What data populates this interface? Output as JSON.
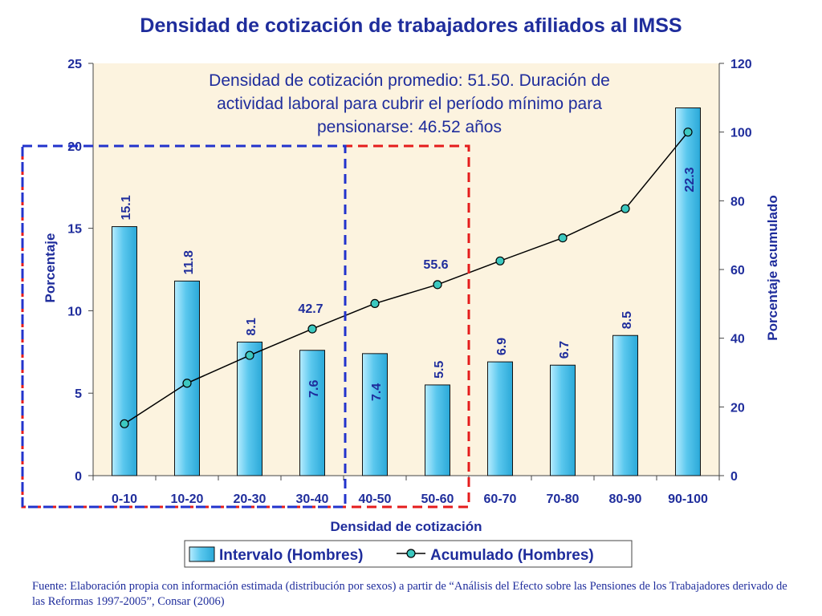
{
  "title": "Densidad de cotización de trabajadores afiliados al IMSS",
  "source": "Fuente: Elaboración propia con información estimada (distribución por sexos) a partir de “Análisis del Efecto sobre las Pensiones de los Trabajadores derivado de las Reformas 1997-2005”, Consar (2006)",
  "chart_data": {
    "type": "bar",
    "xlabel": "Densidad de cotización",
    "ylabel": "Porcentaje",
    "y2label": "Porcentaje acumulado",
    "ylim": [
      0,
      25
    ],
    "y2lim": [
      0,
      120
    ],
    "yticks": [
      0,
      5,
      10,
      15,
      20,
      25
    ],
    "y2ticks": [
      0,
      20,
      40,
      60,
      80,
      100,
      120
    ],
    "categories": [
      "0-10",
      "10-20",
      "20-30",
      "30-40",
      "40-50",
      "50-60",
      "60-70",
      "70-80",
      "80-90",
      "90-100"
    ],
    "series": [
      {
        "name": "Intervalo (Hombres)",
        "type": "bar",
        "axis": "left",
        "values": [
          15.1,
          11.8,
          8.1,
          7.6,
          7.4,
          5.5,
          6.9,
          6.7,
          8.5,
          22.3
        ],
        "labels": [
          "15.1",
          "11.8",
          "8.1",
          "7.6",
          "7.4",
          "5.5",
          "6.9",
          "6.7",
          "8.5",
          "22.3"
        ],
        "color": "#5bc8ee"
      },
      {
        "name": "Acumulado (Hombres)",
        "type": "line",
        "axis": "right",
        "values": [
          15.1,
          26.9,
          35.0,
          42.7,
          50.1,
          55.6,
          62.5,
          69.2,
          77.7,
          100.0
        ],
        "point_labels": {
          "3": "42.7",
          "5": "55.6"
        },
        "color": "#000000",
        "marker_color": "#3cc8c0"
      }
    ],
    "annotation": "Densidad de cotización promedio: 51.50. Duración de actividad laboral para cubrir el período mínimo para pensionarse: 46.52 años",
    "grid": false,
    "legend_position": "bottom",
    "colors": {
      "plot_bg": "#fcf3df",
      "text": "#1f2d9c",
      "blue_box": "#2233cc",
      "red_box": "#e51c1c"
    }
  }
}
